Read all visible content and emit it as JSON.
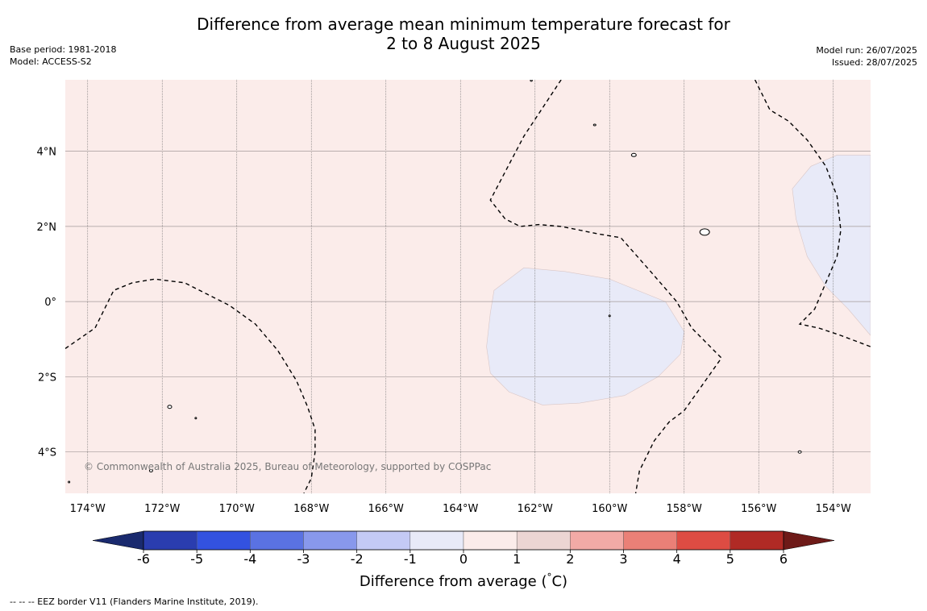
{
  "title": {
    "line1": "Difference from average mean minimum temperature forecast for",
    "line2": "2 to 8 August 2025"
  },
  "meta_left": {
    "base_period": "Base period: 1981-2018",
    "model": "Model: ACCESS-S2"
  },
  "meta_right": {
    "model_run": "Model run: 26/07/2025",
    "issued": "Issued: 28/07/2025"
  },
  "map": {
    "extent": {
      "lon_min": -174.6,
      "lon_max": -153.0,
      "lat_min": -5.1,
      "lat_max": 5.9
    },
    "lon_ticks": [
      {
        "value": -174,
        "label": "174°W"
      },
      {
        "value": -172,
        "label": "172°W"
      },
      {
        "value": -170,
        "label": "170°W"
      },
      {
        "value": -168,
        "label": "168°W"
      },
      {
        "value": -166,
        "label": "166°W"
      },
      {
        "value": -164,
        "label": "164°W"
      },
      {
        "value": -162,
        "label": "162°W"
      },
      {
        "value": -160,
        "label": "160°W"
      },
      {
        "value": -158,
        "label": "158°W"
      },
      {
        "value": -156,
        "label": "156°W"
      },
      {
        "value": -154,
        "label": "154°W"
      }
    ],
    "lat_ticks": [
      {
        "value": 4,
        "label": "4°N"
      },
      {
        "value": 2,
        "label": "2°N"
      },
      {
        "value": 0,
        "label": "0°"
      },
      {
        "value": -2,
        "label": "2°S"
      },
      {
        "value": -4,
        "label": "4°S"
      }
    ],
    "background_category": "0 to 1",
    "regions": [
      {
        "category": "-1 to 0",
        "color": "#e8eaf8",
        "outline": [
          [
            -163.1,
            0.3
          ],
          [
            -162.3,
            0.9
          ],
          [
            -161.2,
            0.8
          ],
          [
            -160.0,
            0.6
          ],
          [
            -158.5,
            0.0
          ],
          [
            -158.0,
            -0.8
          ],
          [
            -158.1,
            -1.4
          ],
          [
            -158.7,
            -2.0
          ],
          [
            -159.6,
            -2.5
          ],
          [
            -160.8,
            -2.7
          ],
          [
            -161.8,
            -2.75
          ],
          [
            -162.7,
            -2.4
          ],
          [
            -163.2,
            -1.9
          ],
          [
            -163.3,
            -1.2
          ],
          [
            -163.2,
            -0.3
          ]
        ]
      },
      {
        "category": "-1 to 0",
        "color": "#e8eaf8",
        "outline": [
          [
            -153.0,
            3.9
          ],
          [
            -153.9,
            3.9
          ],
          [
            -154.6,
            3.6
          ],
          [
            -155.1,
            3.0
          ],
          [
            -155.0,
            2.2
          ],
          [
            -154.7,
            1.2
          ],
          [
            -154.2,
            0.4
          ],
          [
            -153.6,
            -0.2
          ],
          [
            -153.0,
            -0.9
          ]
        ]
      }
    ],
    "eez_lines": [
      [
        [
          -174.6,
          -1.25
        ],
        [
          -173.8,
          -0.7
        ],
        [
          -173.3,
          0.3
        ],
        [
          -172.8,
          0.5
        ],
        [
          -172.2,
          0.6
        ],
        [
          -171.4,
          0.5
        ],
        [
          -170.8,
          0.2
        ],
        [
          -170.2,
          -0.1
        ],
        [
          -169.5,
          -0.6
        ],
        [
          -168.9,
          -1.3
        ],
        [
          -168.4,
          -2.1
        ],
        [
          -168.1,
          -2.8
        ],
        [
          -167.9,
          -3.4
        ],
        [
          -167.9,
          -4.0
        ],
        [
          -168.0,
          -4.7
        ],
        [
          -168.2,
          -5.1
        ]
      ],
      [
        [
          -161.3,
          5.9
        ],
        [
          -162.3,
          4.4
        ],
        [
          -163.2,
          2.7
        ],
        [
          -162.8,
          2.2
        ],
        [
          -162.4,
          2.0
        ],
        [
          -161.9,
          2.05
        ],
        [
          -161.3,
          2.0
        ],
        [
          -160.3,
          1.8
        ],
        [
          -159.7,
          1.7
        ],
        [
          -158.9,
          0.8
        ],
        [
          -158.2,
          0.0
        ],
        [
          -157.8,
          -0.7
        ],
        [
          -157.0,
          -1.5
        ],
        [
          -157.5,
          -2.2
        ],
        [
          -158.0,
          -2.9
        ],
        [
          -158.4,
          -3.2
        ],
        [
          -158.8,
          -3.7
        ],
        [
          -159.2,
          -4.5
        ],
        [
          -159.3,
          -5.1
        ]
      ],
      [
        [
          -156.1,
          5.9
        ],
        [
          -155.7,
          5.1
        ],
        [
          -155.2,
          4.8
        ],
        [
          -154.7,
          4.3
        ],
        [
          -154.2,
          3.6
        ],
        [
          -153.9,
          2.8
        ],
        [
          -153.8,
          1.9
        ],
        [
          -153.9,
          1.2
        ],
        [
          -154.2,
          0.5
        ],
        [
          -154.5,
          -0.2
        ],
        [
          -154.9,
          -0.6
        ],
        [
          -154.4,
          -0.7
        ],
        [
          -153.8,
          -0.9
        ],
        [
          -153.0,
          -1.2
        ]
      ]
    ],
    "islands": [
      {
        "lon": -162.1,
        "lat": 5.88,
        "rx": 1.2,
        "ry": 1
      },
      {
        "lon": -160.4,
        "lat": 4.7,
        "rx": 1.5,
        "ry": 1
      },
      {
        "lon": -159.35,
        "lat": 3.9,
        "rx": 3,
        "ry": 2
      },
      {
        "lon": -157.45,
        "lat": 1.85,
        "rx": 6,
        "ry": 4
      },
      {
        "lon": -160.0,
        "lat": -0.38,
        "rx": 1,
        "ry": 1
      },
      {
        "lon": -171.8,
        "lat": -2.8,
        "rx": 2.5,
        "ry": 2
      },
      {
        "lon": -171.1,
        "lat": -3.1,
        "rx": 1,
        "ry": 1
      },
      {
        "lon": -172.3,
        "lat": -4.5,
        "rx": 2,
        "ry": 1.5
      },
      {
        "lon": -154.9,
        "lat": -4.0,
        "rx": 2,
        "ry": 1.5
      },
      {
        "lon": -174.5,
        "lat": -4.8,
        "rx": 1,
        "ry": 1
      }
    ],
    "copyright": "© Commonwealth of Australia 2025, Bureau of Meteorology, supported by COSPPac"
  },
  "colorbar": {
    "label": "Difference from average (",
    "label_unit": "°C)",
    "bins": [
      {
        "from": -6,
        "to": -5,
        "color": "#2a3daf"
      },
      {
        "from": -5,
        "to": -4,
        "color": "#3352e0"
      },
      {
        "from": -4,
        "to": -3,
        "color": "#5a72e2"
      },
      {
        "from": -3,
        "to": -2,
        "color": "#8898ec"
      },
      {
        "from": -2,
        "to": -1,
        "color": "#c4caf5"
      },
      {
        "from": -1,
        "to": 0,
        "color": "#e8eaf8"
      },
      {
        "from": 0,
        "to": 1,
        "color": "#fbecea"
      },
      {
        "from": 1,
        "to": 2,
        "color": "#ecd5d3"
      },
      {
        "from": 2,
        "to": 3,
        "color": "#f2aaa6"
      },
      {
        "from": 3,
        "to": 4,
        "color": "#ea8077"
      },
      {
        "from": 4,
        "to": 5,
        "color": "#dd4c43"
      },
      {
        "from": 5,
        "to": 6,
        "color": "#b02a25"
      }
    ],
    "low_extend_color": "#1a2a6e",
    "high_extend_color": "#6e1a18",
    "ticks": [
      "-6",
      "-5",
      "-4",
      "-3",
      "-2",
      "-1",
      "0",
      "1",
      "2",
      "3",
      "4",
      "5",
      "6"
    ]
  },
  "footer": "--  --  -- EEZ border V11 (Flanders Marine Institute, 2019)."
}
